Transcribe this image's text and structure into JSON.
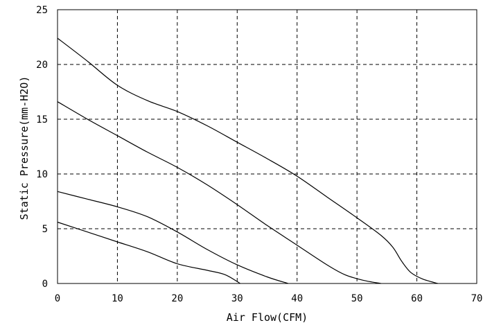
{
  "chart_data": {
    "type": "line",
    "title": "",
    "xlabel": "Air Flow(CFM)",
    "ylabel": "Static Pressure(mm-H2O)",
    "xlim": [
      0,
      70
    ],
    "ylim": [
      0,
      25
    ],
    "x_ticks": [
      0,
      10,
      20,
      30,
      40,
      50,
      60,
      70
    ],
    "y_ticks": [
      0,
      5,
      10,
      15,
      20,
      25
    ],
    "grid": true,
    "series": [
      {
        "points": [
          [
            0,
            22.4
          ],
          [
            5,
            20.3
          ],
          [
            10,
            18.1
          ],
          [
            15,
            16.7
          ],
          [
            20,
            15.7
          ],
          [
            25,
            14.4
          ],
          [
            30,
            12.9
          ],
          [
            35,
            11.4
          ],
          [
            40,
            9.8
          ],
          [
            45,
            7.9
          ],
          [
            50,
            6.0
          ],
          [
            54,
            4.4
          ],
          [
            56,
            3.3
          ],
          [
            57.5,
            2.0
          ],
          [
            59,
            1.0
          ],
          [
            61,
            0.4
          ],
          [
            63.5,
            0
          ]
        ]
      },
      {
        "points": [
          [
            0,
            16.6
          ],
          [
            5,
            15.0
          ],
          [
            10,
            13.5
          ],
          [
            15,
            12.0
          ],
          [
            20,
            10.6
          ],
          [
            25,
            9.0
          ],
          [
            30,
            7.2
          ],
          [
            35,
            5.3
          ],
          [
            40,
            3.5
          ],
          [
            45,
            1.7
          ],
          [
            48,
            0.8
          ],
          [
            51,
            0.3
          ],
          [
            54,
            0
          ]
        ]
      },
      {
        "points": [
          [
            0,
            8.4
          ],
          [
            5,
            7.7
          ],
          [
            10,
            7.0
          ],
          [
            15,
            6.1
          ],
          [
            20,
            4.7
          ],
          [
            25,
            3.1
          ],
          [
            30,
            1.7
          ],
          [
            35,
            0.6
          ],
          [
            38.5,
            0
          ]
        ]
      },
      {
        "points": [
          [
            0,
            5.6
          ],
          [
            5,
            4.7
          ],
          [
            10,
            3.8
          ],
          [
            15,
            2.9
          ],
          [
            20,
            1.8
          ],
          [
            25,
            1.2
          ],
          [
            28,
            0.8
          ],
          [
            30.5,
            0
          ]
        ]
      }
    ]
  }
}
